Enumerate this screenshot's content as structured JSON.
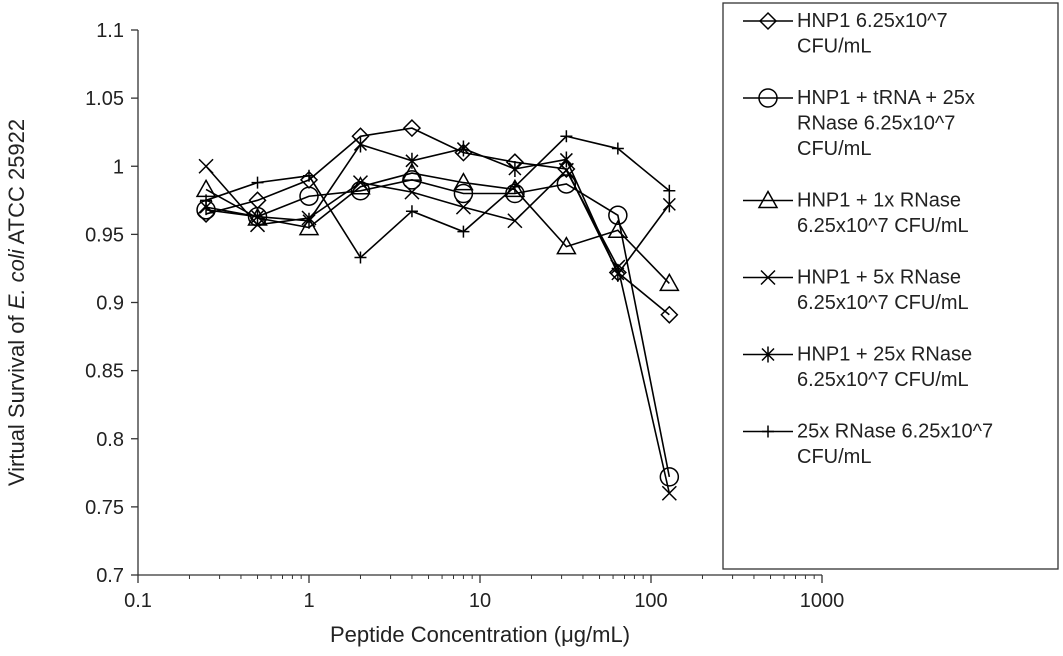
{
  "chart_data": {
    "type": "line",
    "xlabel": "Peptide Concentration (μg/mL)",
    "ylabel_parts": [
      "Virtual Survival of ",
      "E. coli",
      " ATCC 25922"
    ],
    "x_scale": "log",
    "xlim": [
      0.1,
      1000
    ],
    "ylim": [
      0.7,
      1.1
    ],
    "x_ticks": [
      0.1,
      1,
      10,
      100,
      1000
    ],
    "x_tick_labels": [
      "0.1",
      "1",
      "10",
      "100",
      "1000"
    ],
    "y_ticks": [
      0.7,
      0.75,
      0.8,
      0.85,
      0.9,
      0.95,
      1,
      1.05,
      1.1
    ],
    "y_tick_labels": [
      "0.7",
      "0.75",
      "0.8",
      "0.85",
      "0.9",
      "0.95",
      "1",
      "1.05",
      "1.1"
    ],
    "grid": false,
    "legend_position": "right",
    "x": [
      0.25,
      0.5,
      1,
      2,
      4,
      8,
      16,
      32,
      64,
      128
    ],
    "series": [
      {
        "name_lines": [
          "HNP1 6.25x10^7",
          "CFU/mL"
        ],
        "marker": "diamond",
        "values": [
          0.965,
          0.975,
          0.99,
          1.022,
          1.028,
          1.01,
          1.003,
          0.998,
          0.922,
          0.891
        ]
      },
      {
        "name_lines": [
          "HNP1 + tRNA + 25x",
          "RNase 6.25x10^7",
          "CFU/mL"
        ],
        "marker": "circle",
        "values": [
          0.968,
          0.963,
          0.978,
          0.982,
          0.99,
          0.98,
          0.98,
          0.987,
          0.964,
          0.772
        ]
      },
      {
        "name_lines": [
          "HNP1 + 1x RNase",
          "6.25x10^7 CFU/mL"
        ],
        "marker": "triangle",
        "values": [
          0.983,
          0.962,
          0.955,
          0.985,
          0.995,
          0.988,
          0.983,
          0.941,
          0.953,
          0.914
        ]
      },
      {
        "name_lines": [
          "HNP1 + 5x RNase",
          "6.25x10^7 CFU/mL"
        ],
        "marker": "x",
        "values": [
          1.0,
          0.957,
          0.962,
          0.988,
          0.981,
          0.97,
          0.96,
          0.997,
          0.926,
          0.76
        ]
      },
      {
        "name_lines": [
          "HNP1 + 25x RNase",
          "6.25x10^7 CFU/mL"
        ],
        "marker": "star",
        "values": [
          0.97,
          0.963,
          0.96,
          1.016,
          1.004,
          1.013,
          0.998,
          1.005,
          0.921,
          0.972
        ]
      },
      {
        "name_lines": [
          "25x RNase 6.25x10^7",
          "CFU/mL"
        ],
        "marker": "plus",
        "values": [
          0.975,
          0.988,
          0.993,
          0.933,
          0.967,
          0.952,
          0.985,
          1.022,
          1.013,
          0.982
        ]
      }
    ]
  }
}
